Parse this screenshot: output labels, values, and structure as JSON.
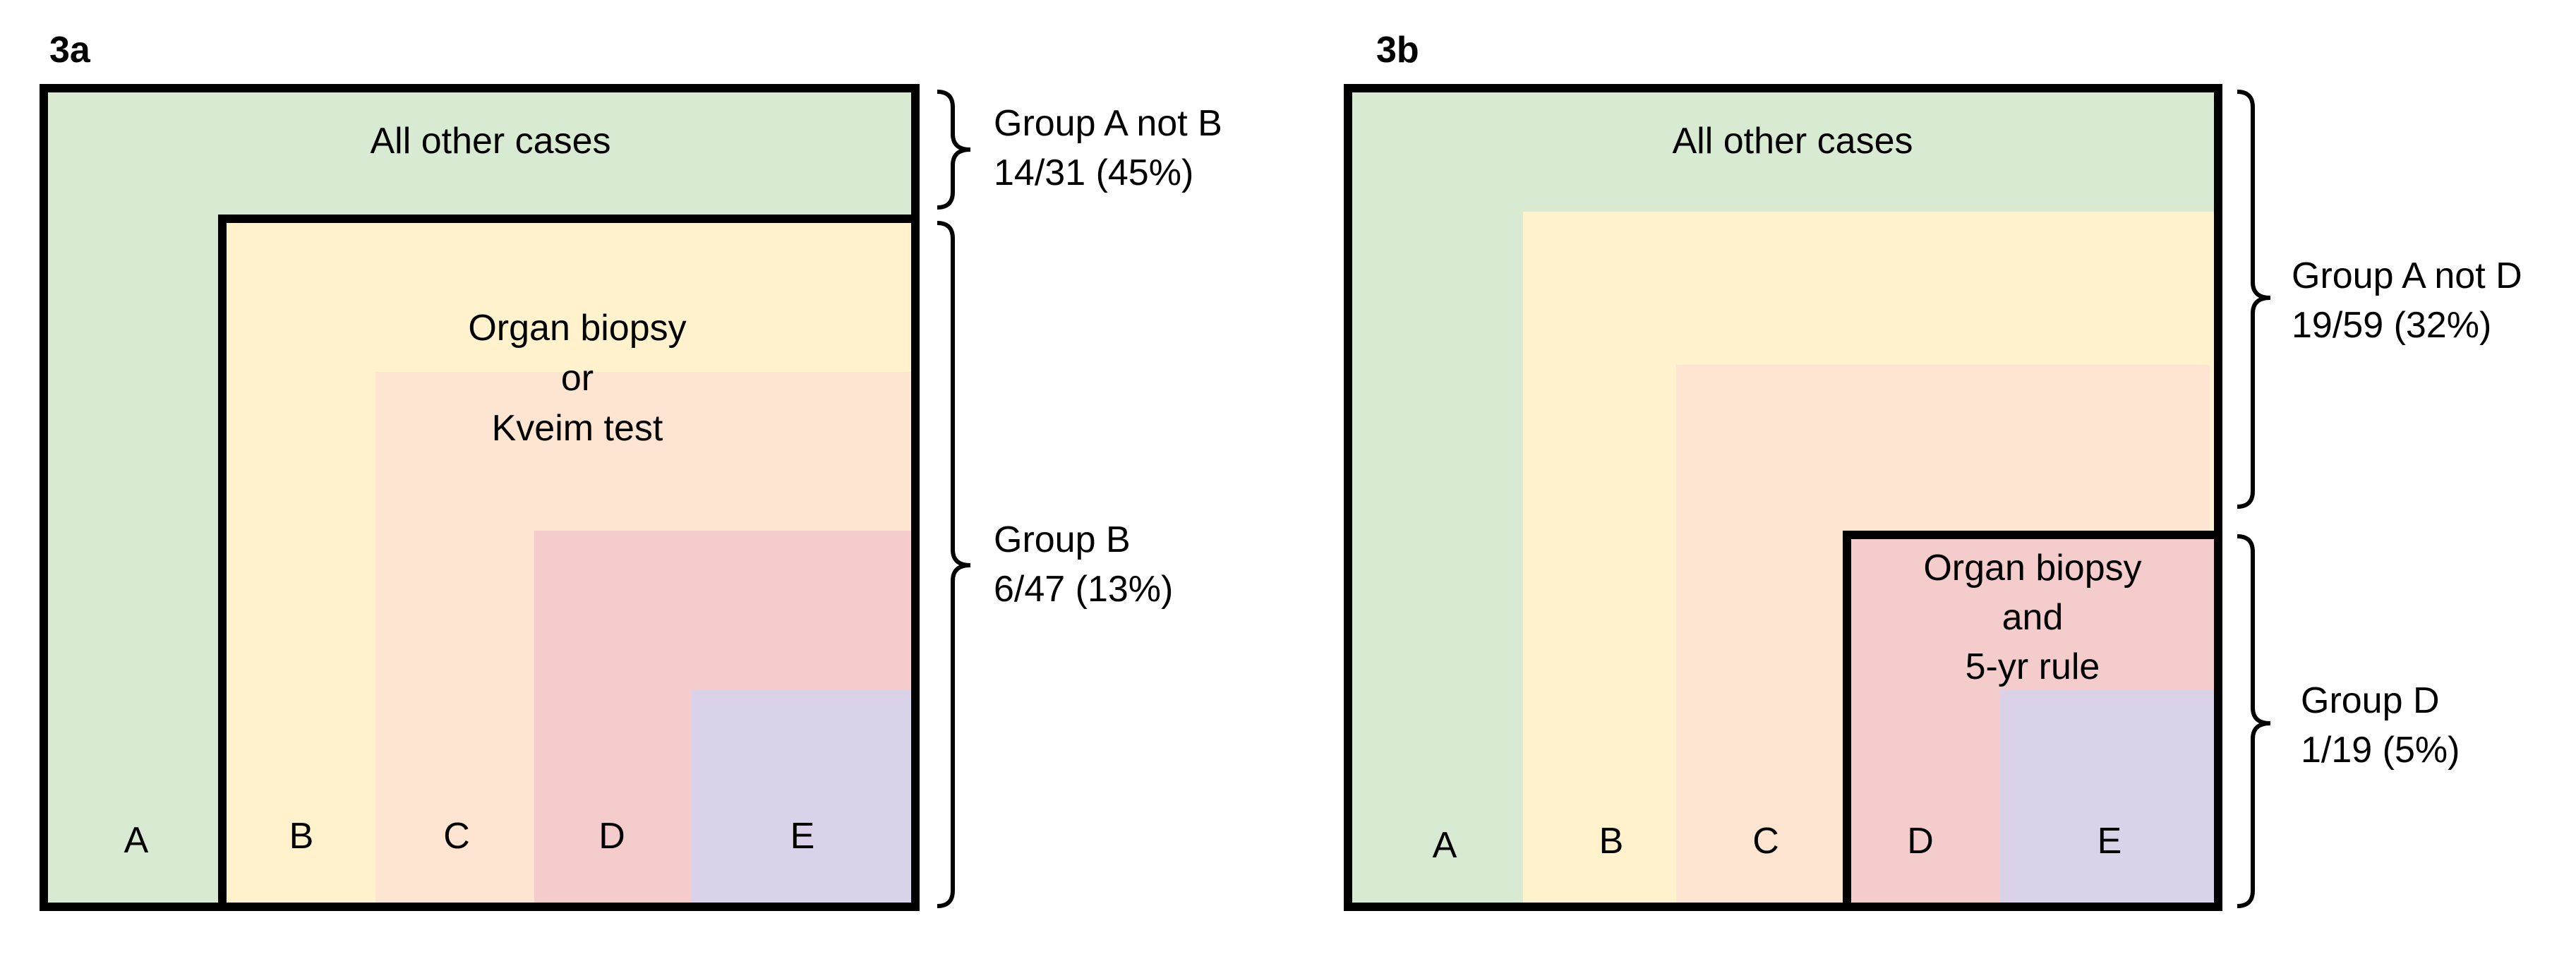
{
  "colors": {
    "A": "#d9ead3",
    "B": "#fff2cc",
    "C": "#fde5d1",
    "D": "#f4cccc",
    "E": "#d9d2e9",
    "border": "#000000"
  },
  "panel_3a": {
    "title": "3a",
    "outer_label": "All other cases",
    "inner_label_lines": [
      "Organ biopsy",
      "or",
      "Kveim test"
    ],
    "letters": [
      "A",
      "B",
      "C",
      "D",
      "E"
    ],
    "brace_top": {
      "line1": "Group A not B",
      "line2": "14/31 (45%)"
    },
    "brace_bottom": {
      "line1": "Group B",
      "line2": "6/47 (13%)"
    }
  },
  "panel_3b": {
    "title": "3b",
    "outer_label": "All other cases",
    "inner_label_lines": [
      "Organ biopsy",
      "and",
      "5-yr rule"
    ],
    "letters": [
      "A",
      "B",
      "C",
      "D",
      "E"
    ],
    "brace_top": {
      "line1": "Group A not D",
      "line2": "19/59 (32%)"
    },
    "brace_bottom": {
      "line1": "Group D",
      "line2": "1/19 (5%)"
    }
  }
}
